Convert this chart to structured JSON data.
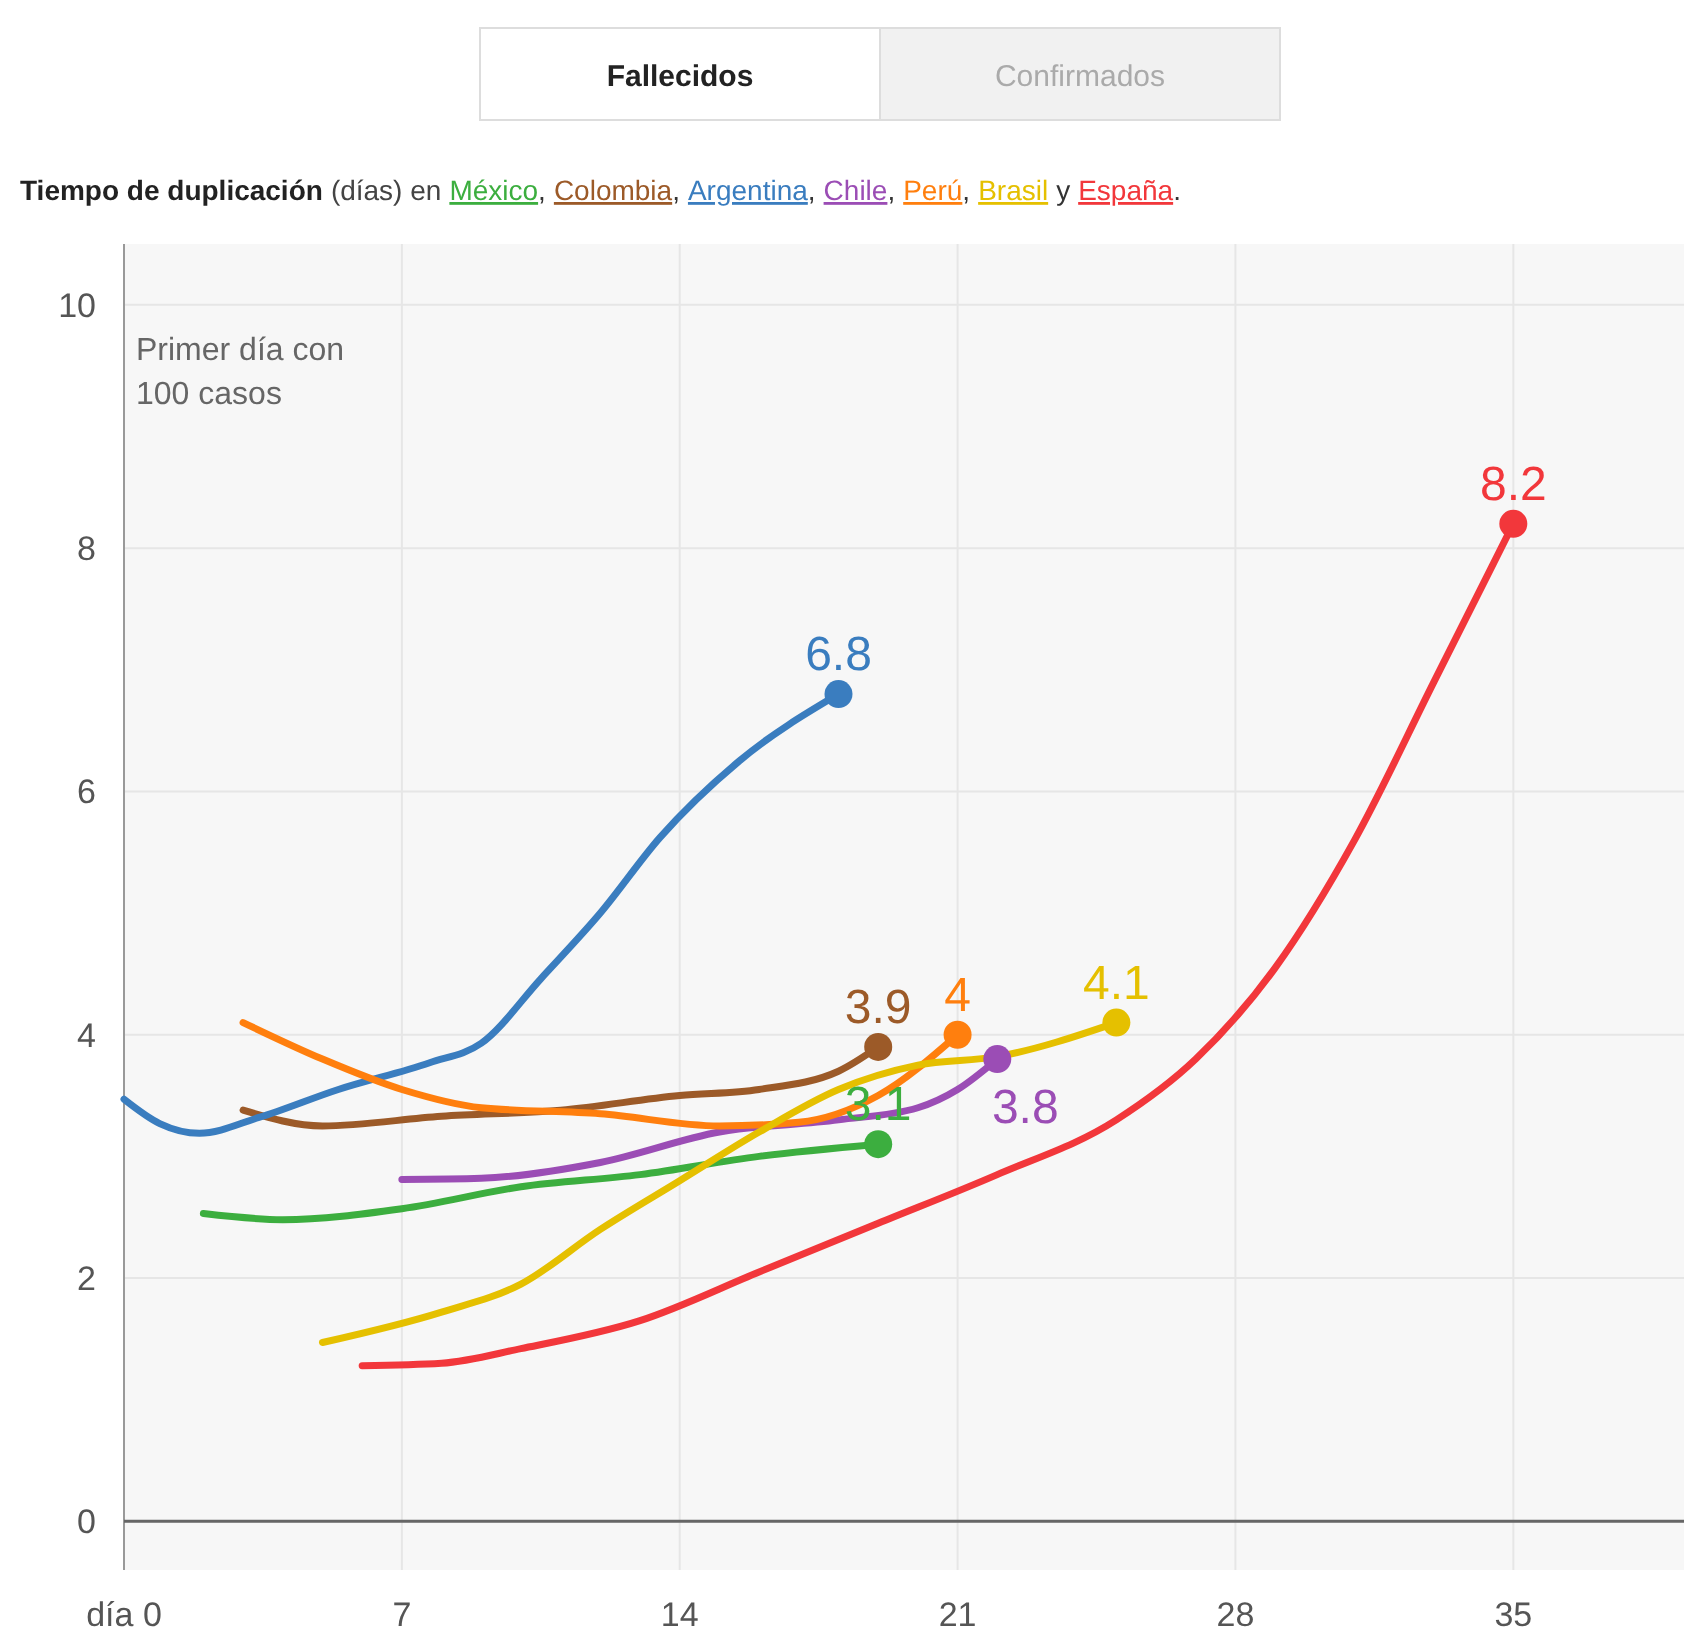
{
  "chart_data": {
    "type": "line",
    "title": "Tiempo de duplicación",
    "legend_title": "(días) en",
    "legend": "top",
    "annotations": [
      "Fallecidos",
      "Confirmados",
      "Primer día con 100 casos",
      "y",
      ",",
      "."
    ],
    "xlim": [
      0,
      39.3
    ],
    "ylim": [
      -0.4,
      10.5
    ],
    "xticks": [
      {
        "value": 0,
        "label": "día 0"
      },
      7,
      14,
      21,
      28,
      35
    ],
    "yticks": [
      0,
      2,
      4,
      6,
      8,
      10
    ],
    "grid": true,
    "ref_lines": [
      {
        "axis": "y",
        "value": 0,
        "color": "#666666"
      }
    ],
    "marker": "none",
    "line_style": "solid",
    "series": [
      {
        "name": "México",
        "color": "#3cae3f",
        "x": [
          2,
          4,
          7,
          10,
          13,
          16,
          19
        ],
        "values": [
          2.53,
          2.48,
          2.57,
          2.75,
          2.85,
          3.0,
          3.1
        ],
        "value_labels": [
          null,
          null,
          null,
          null,
          null,
          null,
          "3.1"
        ]
      },
      {
        "name": "Colombia",
        "color": "#9c5a28",
        "x": [
          3,
          5,
          8,
          11,
          14,
          16,
          18,
          19
        ],
        "values": [
          3.38,
          3.25,
          3.33,
          3.38,
          3.5,
          3.55,
          3.7,
          3.9
        ],
        "value_labels": [
          null,
          null,
          null,
          null,
          null,
          null,
          null,
          "3.9"
        ]
      },
      {
        "name": "Argentina",
        "color": "#3a7dbf",
        "x": [
          0,
          0.9,
          1.9,
          3.4,
          5.4,
          7.7,
          9,
          10.5,
          12,
          13.5,
          15.5,
          18
        ],
        "values": [
          3.47,
          3.27,
          3.19,
          3.32,
          3.55,
          3.77,
          3.93,
          4.46,
          5.0,
          5.62,
          6.25,
          6.8
        ],
        "value_labels": [
          null,
          null,
          null,
          null,
          null,
          null,
          null,
          null,
          null,
          null,
          null,
          "6.8"
        ]
      },
      {
        "name": "Chile",
        "color": "#9b4db5",
        "x": [
          7,
          9,
          12,
          15,
          18,
          20,
          21,
          22
        ],
        "values": [
          2.81,
          2.82,
          2.95,
          3.2,
          3.3,
          3.4,
          3.55,
          3.8
        ],
        "value_labels": [
          null,
          null,
          null,
          null,
          null,
          null,
          null,
          "3.8"
        ]
      },
      {
        "name": "Perú",
        "color": "#ff7f0e",
        "x": [
          3,
          5,
          7,
          9,
          12,
          15,
          17,
          19,
          21
        ],
        "values": [
          4.1,
          3.8,
          3.55,
          3.4,
          3.35,
          3.25,
          3.28,
          3.5,
          4
        ],
        "value_labels": [
          null,
          null,
          null,
          null,
          null,
          null,
          null,
          null,
          "4"
        ]
      },
      {
        "name": "Brasil",
        "color": "#e5c000",
        "x": [
          5,
          8,
          10,
          12,
          14,
          16,
          18,
          20,
          22,
          25
        ],
        "values": [
          1.47,
          1.72,
          1.95,
          2.4,
          2.8,
          3.2,
          3.55,
          3.75,
          3.82,
          4.1
        ],
        "value_labels": [
          null,
          null,
          null,
          null,
          null,
          null,
          null,
          null,
          null,
          "4.1"
        ]
      },
      {
        "name": "España",
        "color": "#f2373b",
        "x": [
          6,
          8,
          10,
          13,
          16,
          19,
          22,
          25,
          27,
          29,
          31,
          33,
          35
        ],
        "values": [
          1.28,
          1.3,
          1.42,
          1.65,
          2.05,
          2.45,
          2.85,
          3.3,
          3.8,
          4.55,
          5.6,
          6.9,
          8.2
        ],
        "value_labels": [
          null,
          null,
          null,
          null,
          null,
          null,
          null,
          null,
          null,
          null,
          null,
          null,
          "8.2"
        ]
      }
    ]
  }
}
